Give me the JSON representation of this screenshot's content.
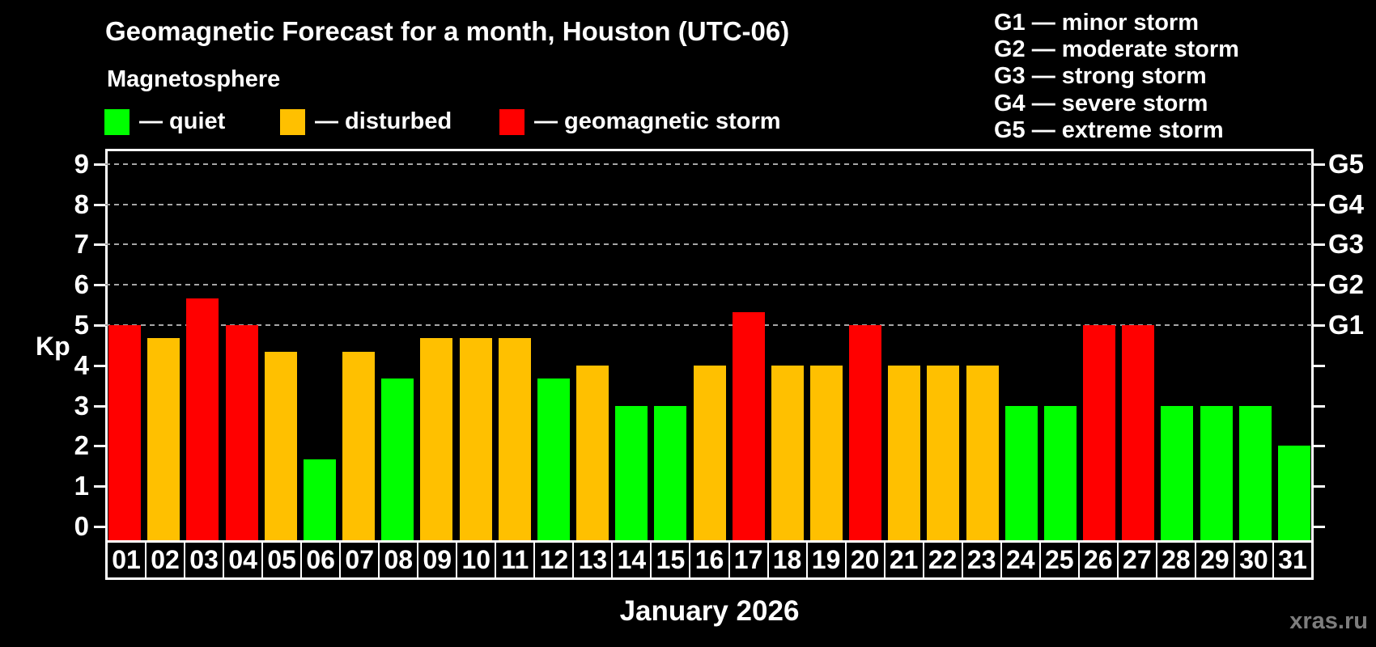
{
  "header": {
    "title": "Geomagnetic Forecast for a month, Houston (UTC-06)",
    "subtitle": "Magnetosphere",
    "legend": [
      {
        "key": "quiet",
        "label": "— quiet",
        "color": "#00ff00"
      },
      {
        "key": "disturbed",
        "label": "— disturbed",
        "color": "#ffc000"
      },
      {
        "key": "storm",
        "label": "— geomagnetic storm",
        "color": "#ff0000"
      }
    ]
  },
  "storm_scale": {
    "lines": [
      "G1 — minor storm",
      "G2 — moderate storm",
      "G3 — strong storm",
      "G4 — severe storm",
      "G5 — extreme storm"
    ]
  },
  "chart_data": {
    "type": "bar",
    "title": "Geomagnetic Forecast for a month, Houston (UTC-06)",
    "subtitle": "Magnetosphere",
    "ylabel": "Kp",
    "xlabel": "January 2026",
    "ylim": [
      0,
      9
    ],
    "yticks": [
      0,
      1,
      2,
      3,
      4,
      5,
      6,
      7,
      8,
      9
    ],
    "grid": "dashed horizontal lines at G-storm levels only",
    "grid_levels_kp": [
      5,
      6,
      7,
      8,
      9
    ],
    "right_axis_labels": [
      {
        "kp": 5,
        "label": "G1"
      },
      {
        "kp": 6,
        "label": "G2"
      },
      {
        "kp": 7,
        "label": "G3"
      },
      {
        "kp": 8,
        "label": "G4"
      },
      {
        "kp": 9,
        "label": "G5"
      }
    ],
    "categories": [
      "01",
      "02",
      "03",
      "04",
      "05",
      "06",
      "07",
      "08",
      "09",
      "10",
      "11",
      "12",
      "13",
      "14",
      "15",
      "16",
      "17",
      "18",
      "19",
      "20",
      "21",
      "22",
      "23",
      "24",
      "25",
      "26",
      "27",
      "28",
      "29",
      "30",
      "31"
    ],
    "values": [
      5.0,
      4.67,
      5.67,
      5.0,
      4.33,
      1.67,
      4.33,
      3.67,
      4.67,
      4.67,
      4.67,
      3.67,
      4.0,
      3.0,
      3.0,
      4.0,
      5.33,
      4.0,
      4.0,
      5.0,
      4.0,
      4.0,
      4.0,
      3.0,
      3.0,
      5.0,
      5.0,
      3.0,
      3.0,
      3.0,
      2.0
    ],
    "statuses": [
      "storm",
      "disturbed",
      "storm",
      "storm",
      "disturbed",
      "quiet",
      "disturbed",
      "quiet",
      "disturbed",
      "disturbed",
      "disturbed",
      "quiet",
      "disturbed",
      "quiet",
      "quiet",
      "disturbed",
      "storm",
      "disturbed",
      "disturbed",
      "storm",
      "disturbed",
      "disturbed",
      "disturbed",
      "quiet",
      "quiet",
      "storm",
      "storm",
      "quiet",
      "quiet",
      "quiet",
      "quiet"
    ],
    "status_colors": {
      "quiet": "#00ff00",
      "disturbed": "#ffc000",
      "storm": "#ff0000"
    },
    "legend_position": "top-left"
  },
  "footer": {
    "watermark": "xras.ru"
  }
}
